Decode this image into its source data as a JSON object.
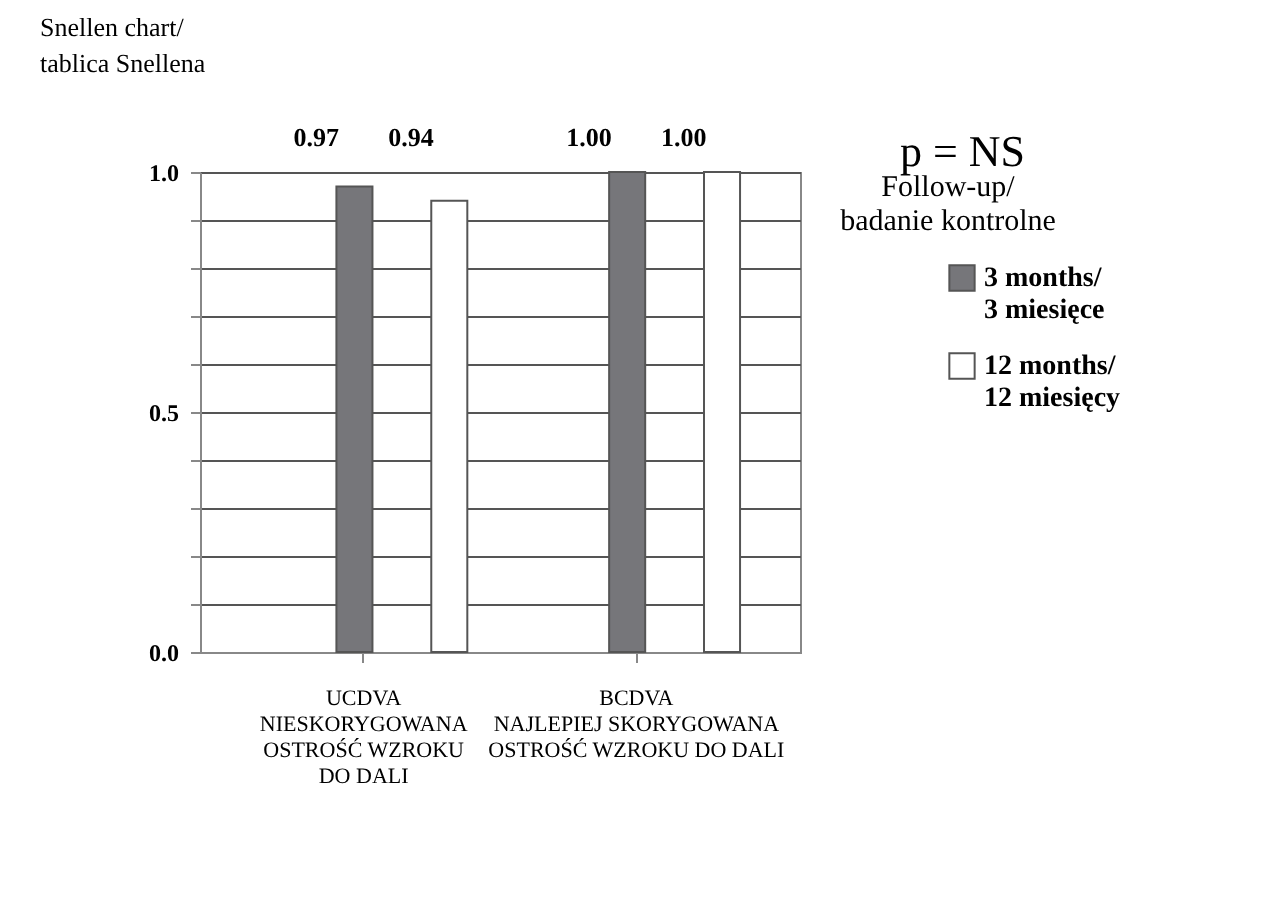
{
  "chart_data": {
    "type": "bar",
    "ylabel": "Snellen chart/\ntablica Snellena",
    "legend_title": "Follow-up/\nbadanie kontrolne",
    "annotations": [
      "p = NS"
    ],
    "categories": [
      "UCDVA\nNIESKORYGOWANA\nOSTROŚĆ WZROKU\nDO DALI",
      "BCDVA\nNAJLEPIEJ SKORYGOWANA\nOSTROŚĆ WZROKU DO DALI"
    ],
    "series": [
      {
        "name": "3 months/\n3 miesięce",
        "color": "#76767a",
        "values": [
          0.97,
          1.0
        ],
        "value_labels": [
          "0.97",
          "1.00"
        ]
      },
      {
        "name": "12 months/\n12 miesięcy",
        "color": "#ffffff",
        "values": [
          0.94,
          1.0
        ],
        "value_labels": [
          "0.94",
          "1.00"
        ]
      }
    ],
    "ylim": [
      0,
      1
    ],
    "yticks": [
      {
        "value": 0,
        "label": "0.0"
      },
      {
        "value": 0.1,
        "label": null
      },
      {
        "value": 0.2,
        "label": null
      },
      {
        "value": 0.3,
        "label": null
      },
      {
        "value": 0.4,
        "label": null
      },
      {
        "value": 0.5,
        "label": "0.5"
      },
      {
        "value": 0.6,
        "label": null
      },
      {
        "value": 0.7,
        "label": null
      },
      {
        "value": 0.8,
        "label": null
      },
      {
        "value": 0.9,
        "label": null
      },
      {
        "value": 1,
        "label": "1.0"
      }
    ],
    "grid": "y",
    "legend": "right"
  }
}
